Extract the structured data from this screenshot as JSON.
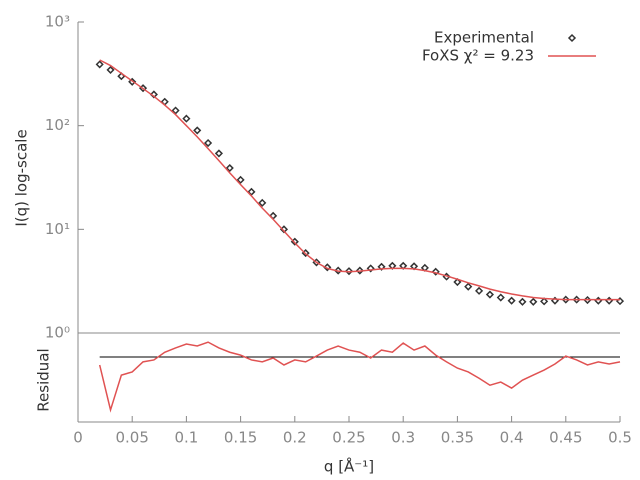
{
  "chart_data": [
    {
      "type": "line",
      "log_y": true,
      "ylabel": "I(q) log-scale",
      "legend": "upper right",
      "x": [
        0.02,
        0.03,
        0.04,
        0.05,
        0.06,
        0.07,
        0.08,
        0.09,
        0.1,
        0.11,
        0.12,
        0.13,
        0.14,
        0.15,
        0.16,
        0.17,
        0.18,
        0.19,
        0.2,
        0.21,
        0.22,
        0.23,
        0.24,
        0.25,
        0.26,
        0.27,
        0.28,
        0.29,
        0.3,
        0.31,
        0.32,
        0.33,
        0.34,
        0.35,
        0.36,
        0.37,
        0.38,
        0.39,
        0.4,
        0.41,
        0.42,
        0.43,
        0.44,
        0.45,
        0.46,
        0.47,
        0.48,
        0.49,
        0.5
      ],
      "xlim": [
        0,
        0.5
      ],
      "ylim": [
        1,
        1000
      ],
      "yticks": [
        {
          "value": 1,
          "label": "10⁰"
        },
        {
          "value": 10,
          "label": "10¹"
        },
        {
          "value": 100,
          "label": "10²"
        },
        {
          "value": 1000,
          "label": "10³"
        }
      ],
      "series": [
        {
          "name": "Experimental",
          "color": "#333333",
          "marker": "diamond",
          "values": [
            390,
            345,
            300,
            265,
            230,
            200,
            170,
            140,
            117,
            90,
            68,
            54,
            39,
            30,
            23,
            18,
            13.5,
            10,
            7.6,
            5.9,
            4.8,
            4.3,
            4.0,
            3.95,
            4.0,
            4.2,
            4.35,
            4.45,
            4.45,
            4.4,
            4.25,
            3.9,
            3.5,
            3.1,
            2.8,
            2.55,
            2.35,
            2.2,
            2.05,
            2.0,
            2.0,
            2.02,
            2.05,
            2.1,
            2.1,
            2.08,
            2.05,
            2.05,
            2.03
          ]
        },
        {
          "name": "FoXS χ² = 9.23",
          "color": "#e05252",
          "values": [
            430,
            380,
            320,
            270,
            228,
            192,
            158,
            128,
            100,
            78,
            60,
            46,
            35,
            27,
            21,
            16,
            12.5,
            9.6,
            7.4,
            5.8,
            4.8,
            4.2,
            3.95,
            3.9,
            3.95,
            4.05,
            4.15,
            4.2,
            4.2,
            4.15,
            4.0,
            3.8,
            3.55,
            3.3,
            3.05,
            2.85,
            2.65,
            2.5,
            2.38,
            2.28,
            2.2,
            2.15,
            2.12,
            2.1,
            2.1,
            2.1,
            2.1,
            2.1,
            2.1
          ]
        }
      ]
    },
    {
      "type": "line",
      "ylabel": "Residual",
      "xlabel": "q [Å⁻¹]",
      "x": [
        0.02,
        0.03,
        0.04,
        0.05,
        0.06,
        0.07,
        0.08,
        0.09,
        0.1,
        0.11,
        0.12,
        0.13,
        0.14,
        0.15,
        0.16,
        0.17,
        0.18,
        0.19,
        0.2,
        0.21,
        0.22,
        0.23,
        0.24,
        0.25,
        0.26,
        0.27,
        0.28,
        0.29,
        0.3,
        0.31,
        0.32,
        0.33,
        0.34,
        0.35,
        0.36,
        0.37,
        0.38,
        0.39,
        0.4,
        0.41,
        0.42,
        0.43,
        0.44,
        0.45,
        0.46,
        0.47,
        0.48,
        0.49,
        0.5
      ],
      "xlim": [
        0,
        0.5
      ],
      "xticks": [
        0,
        0.05,
        0.1,
        0.15,
        0.2,
        0.25,
        0.3,
        0.35,
        0.4,
        0.45,
        0.5
      ],
      "ylim": [
        -2.7,
        1
      ],
      "hline": 0,
      "series": [
        {
          "color": "#e05252",
          "values": [
            -0.33,
            -2.2,
            -0.75,
            -0.62,
            -0.2,
            -0.12,
            0.2,
            0.38,
            0.54,
            0.46,
            0.62,
            0.38,
            0.2,
            0.08,
            -0.12,
            -0.2,
            -0.04,
            -0.33,
            -0.12,
            -0.2,
            0.04,
            0.29,
            0.46,
            0.29,
            0.2,
            -0.04,
            0.29,
            0.2,
            0.58,
            0.29,
            0.46,
            0.08,
            -0.2,
            -0.46,
            -0.62,
            -0.88,
            -1.17,
            -1.04,
            -1.29,
            -0.96,
            -0.75,
            -0.54,
            -0.29,
            0.04,
            -0.12,
            -0.33,
            -0.2,
            -0.29,
            -0.2
          ]
        }
      ]
    }
  ]
}
